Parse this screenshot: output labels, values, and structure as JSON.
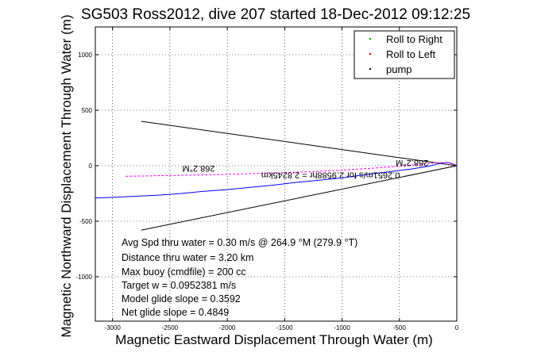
{
  "chart_data": {
    "type": "line",
    "title": "SG503 Ross2012, dive 207 started 18-Dec-2012 09:12:25",
    "xlabel": "Magnetic Eastward Displacement Through Water (m)",
    "ylabel": "Magnetic Northward Displacement Through Water (m)",
    "xlim": [
      -3150,
      0
    ],
    "ylim": [
      -1400,
      1250
    ],
    "x_ticks": [
      -3000,
      -2500,
      -2000,
      -1500,
      -1000,
      -500,
      0
    ],
    "y_ticks": [
      -1000,
      -500,
      0,
      500,
      1000
    ],
    "grid": "dotted",
    "legend_position": "top-right",
    "legend": [
      {
        "label": "Roll to Right",
        "color": "#00b000",
        "marker": "."
      },
      {
        "label": "Roll to Left",
        "color": "#ff0000",
        "marker": "."
      },
      {
        "label": "pump",
        "color": "#000000",
        "marker": "."
      }
    ],
    "series": [
      {
        "color": "#0000ff",
        "x": [
          0,
          -20,
          -60,
          -100,
          -150,
          -250,
          -400,
          -600,
          -800,
          -1000,
          -1200,
          -1400,
          -1600,
          -1800,
          -2000,
          -2200,
          -2400,
          -2600,
          -2800,
          -3000,
          -3150
        ],
        "y": [
          0,
          10,
          25,
          30,
          20,
          -5,
          -30,
          -55,
          -80,
          -110,
          -130,
          -150,
          -175,
          -195,
          -215,
          -230,
          -250,
          -265,
          -275,
          -285,
          -290
        ]
      },
      {
        "color": "#ff00ff",
        "x": [
          0,
          -30,
          -80,
          -200,
          -400,
          -700,
          -1000,
          -1300,
          -1600,
          -1900,
          -2200,
          -2500,
          -2700,
          -2900
        ],
        "y": [
          0,
          15,
          30,
          25,
          5,
          -20,
          -40,
          -55,
          -65,
          -75,
          -82,
          -88,
          -92,
          -95
        ],
        "dashed": true
      }
    ],
    "cone_lines": [
      {
        "x": [
          0,
          -2750
        ],
        "y": [
          0,
          400
        ]
      },
      {
        "x": [
          0,
          -2750
        ],
        "y": [
          0,
          -580
        ]
      }
    ],
    "plot_annotations": [
      {
        "text": "268.2°M",
        "x": -2250,
        "y": 0,
        "rotation": 180
      },
      {
        "text": "268.2°M",
        "x": -390,
        "y": 50,
        "rotation": 180
      },
      {
        "text": "0.2651m/s for 2.9588hr = 2.8245km",
        "x": -1100,
        "y": -60,
        "rotation": 180
      }
    ],
    "stats_lines": [
      "Avg Spd thru water = 0.30 m/s @ 264.9   °M (279.9 °T)",
      "Distance thru water = 3.20 km",
      "Max buoy (cmdfile) = 200 cc",
      "Target w = 0.0952381 m/s",
      "Model glide slope = 0.3592",
      "Net glide slope = 0.4849"
    ]
  }
}
